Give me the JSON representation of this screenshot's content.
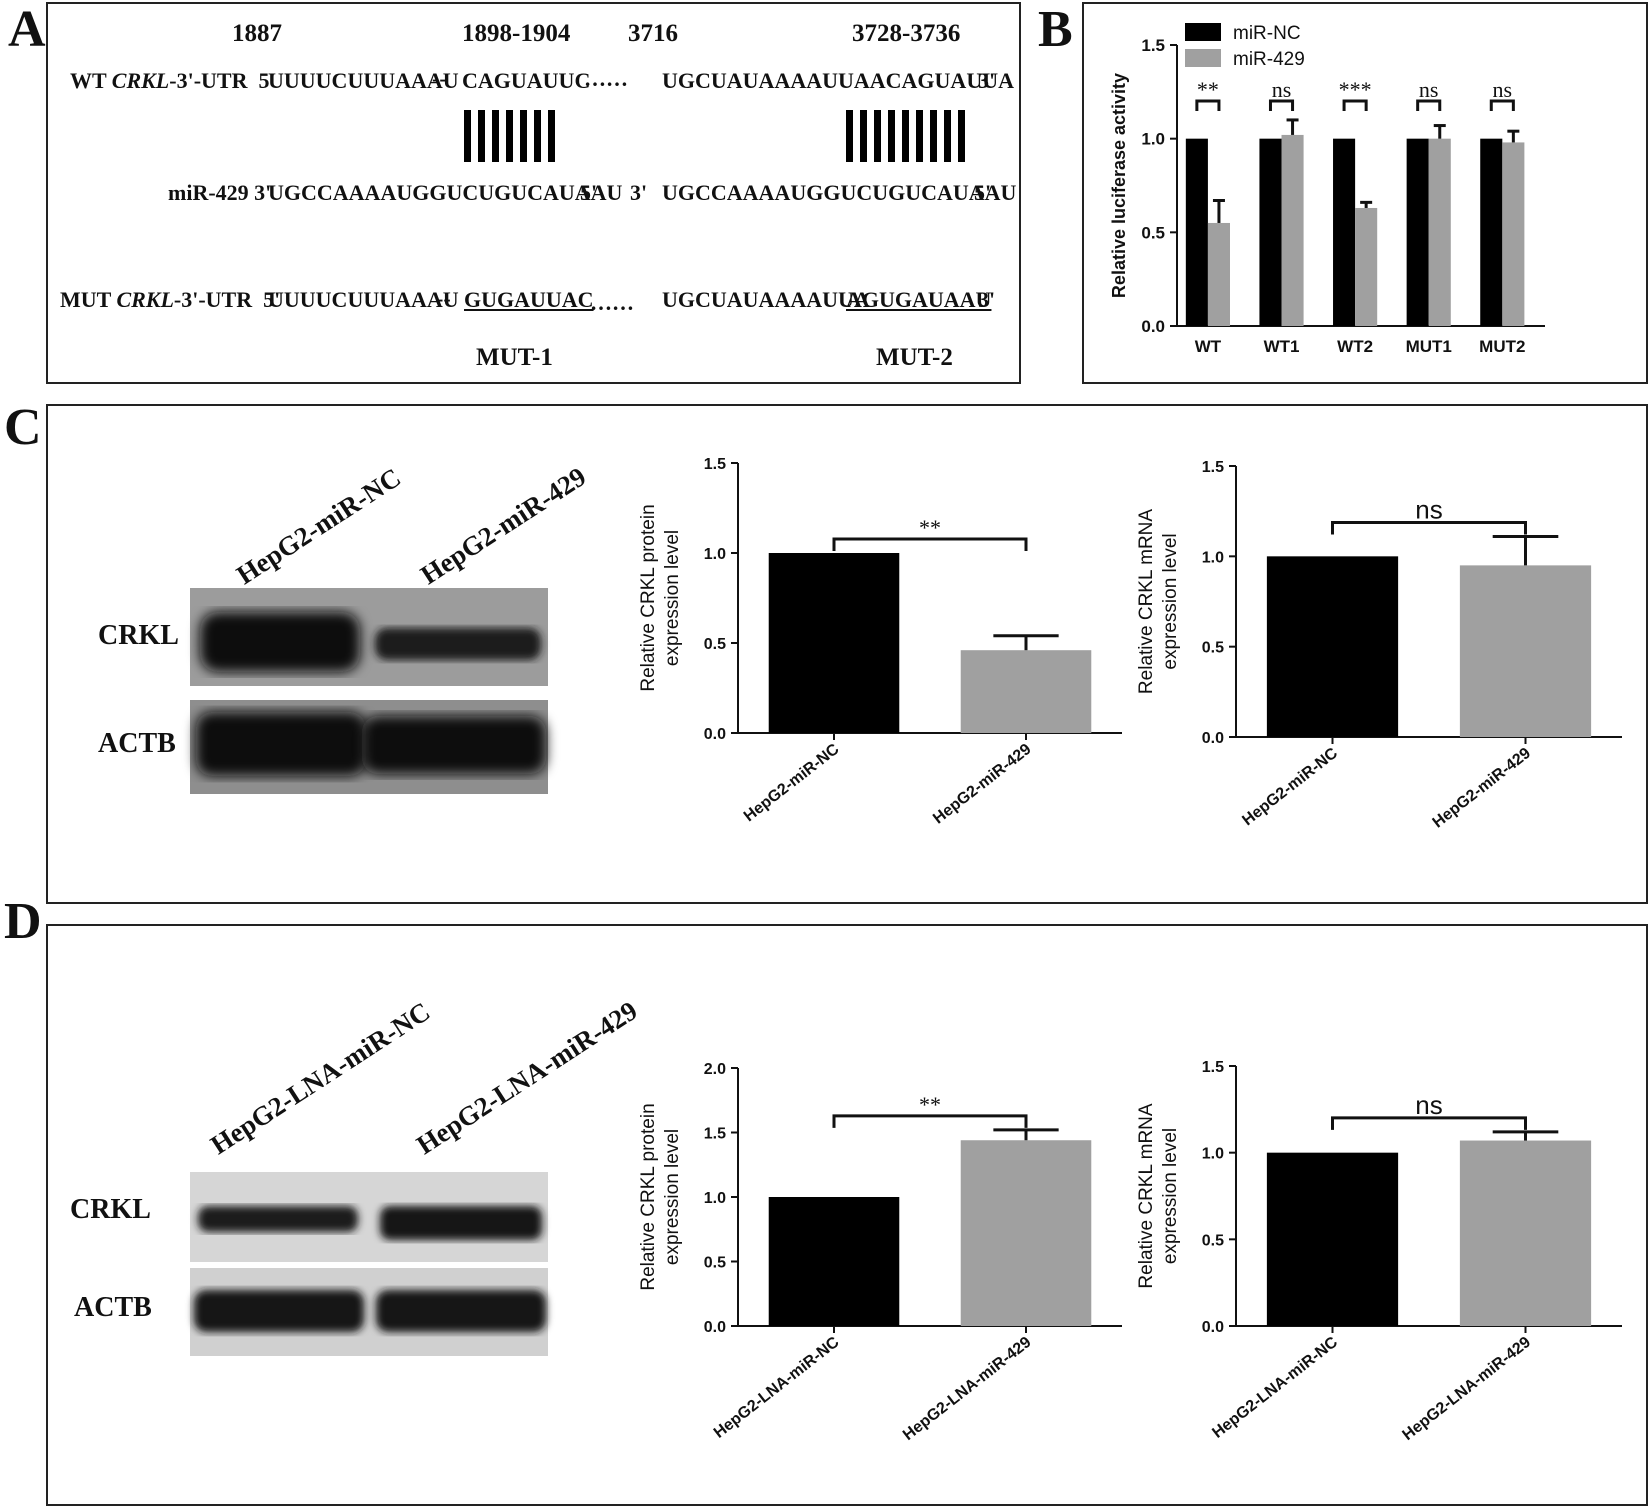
{
  "panel_letters": [
    "A",
    "B",
    "C",
    "D"
  ],
  "panel_a": {
    "positions": [
      "1887",
      "1898-1904",
      "3716",
      "3728-3736"
    ],
    "wt_prefix": "WT ",
    "wt_gene": "CRKL",
    "wt_suffix": "-3'-UTR  5'",
    "wt_seq1": "UUUUCUUUAAAU",
    "wt_dash": "-- ",
    "wt_site1": "CAGUAUUC",
    "dots": "……",
    "wt_seq2": "UGCUAUAAAAUUAACAGUAUUA",
    "three_prime": "3'",
    "five_prime": "5'",
    "mir_label": "miR-429 3'",
    "mir_seq": "UGCCAAAAUGGUCUGUCAUAAU",
    "mut_prefix": "MUT ",
    "mut_gene": "CRKL",
    "mut_suffix": "-3'-UTR  5'",
    "mut_seq1": "UUUUCUUUAAAU",
    "mut_dash": "--",
    "mut_site1": "GUGAUUAC",
    "mut_seq2a": "UGCUAUAAAAUUA",
    "mut_site2": "AGUGAUAAU",
    "mut_labels": [
      "MUT-1",
      "MUT-2"
    ]
  },
  "blots": {
    "c_lanes": [
      "HepG2-miR-NC",
      "HepG2-miR-429"
    ],
    "d_lanes": [
      "HepG2-LNA-miR-NC",
      "HepG2-LNA-miR-429"
    ],
    "bands": [
      "CRKL",
      "ACTB"
    ]
  },
  "chart_data": [
    {
      "id": "B",
      "type": "bar",
      "categories": [
        "WT",
        "WT1",
        "WT2",
        "MUT1",
        "MUT2"
      ],
      "series": [
        {
          "name": "miR-NC",
          "values": [
            1.0,
            1.0,
            1.0,
            1.0,
            1.0
          ],
          "errors": [
            0,
            0,
            0,
            0,
            0
          ],
          "color": "#000000"
        },
        {
          "name": "miR-429",
          "values": [
            0.55,
            1.02,
            0.63,
            1.0,
            0.98
          ],
          "errors": [
            0.12,
            0.08,
            0.03,
            0.07,
            0.06
          ],
          "color": "#a0a0a0"
        }
      ],
      "significance": [
        "**",
        "ns",
        "***",
        "ns",
        "ns"
      ],
      "ylabel": "Relative luciferase activity",
      "ylim": [
        0,
        1.5
      ],
      "yticks": [
        "0.0",
        "0.5",
        "1.0",
        "1.5"
      ],
      "legend": "top-left"
    },
    {
      "id": "C1",
      "type": "bar",
      "categories": [
        "HepG2-miR-NC",
        "HepG2-miR-429"
      ],
      "values": [
        1.0,
        0.46
      ],
      "errors": [
        0,
        0.08
      ],
      "colors": [
        "#000000",
        "#a0a0a0"
      ],
      "significance": "**",
      "ylabel_lines": [
        "Relative CRKL protein",
        "expression level"
      ],
      "ylim": [
        0,
        1.5
      ],
      "yticks": [
        "0.0",
        "0.5",
        "1.0",
        "1.5"
      ]
    },
    {
      "id": "C2",
      "type": "bar",
      "categories": [
        "HepG2-miR-NC",
        "HepG2-miR-429"
      ],
      "values": [
        1.0,
        0.95
      ],
      "errors": [
        0,
        0.16
      ],
      "colors": [
        "#000000",
        "#a0a0a0"
      ],
      "significance": "ns",
      "ylabel_lines": [
        "Relative CRKL mRNA",
        "expression level"
      ],
      "ylim": [
        0,
        1.5
      ],
      "yticks": [
        "0.0",
        "0.5",
        "1.0",
        "1.5"
      ]
    },
    {
      "id": "D1",
      "type": "bar",
      "categories": [
        "HepG2-LNA-miR-NC",
        "HepG2-LNA-miR-429"
      ],
      "values": [
        1.0,
        1.44
      ],
      "errors": [
        0,
        0.08
      ],
      "colors": [
        "#000000",
        "#a0a0a0"
      ],
      "significance": "**",
      "ylabel_lines": [
        "Relative CRKL protein",
        "expression level"
      ],
      "ylim": [
        0,
        2.0
      ],
      "yticks": [
        "0.0",
        "0.5",
        "1.0",
        "1.5",
        "2.0"
      ]
    },
    {
      "id": "D2",
      "type": "bar",
      "categories": [
        "HepG2-LNA-miR-NC",
        "HepG2-LNA-miR-429"
      ],
      "values": [
        1.0,
        1.07
      ],
      "errors": [
        0,
        0.05
      ],
      "colors": [
        "#000000",
        "#a0a0a0"
      ],
      "significance": "ns",
      "ylabel_lines": [
        "Relative CRKL mRNA",
        "expression level"
      ],
      "ylim": [
        0,
        1.5
      ],
      "yticks": [
        "0.0",
        "0.5",
        "1.0",
        "1.5"
      ]
    }
  ]
}
